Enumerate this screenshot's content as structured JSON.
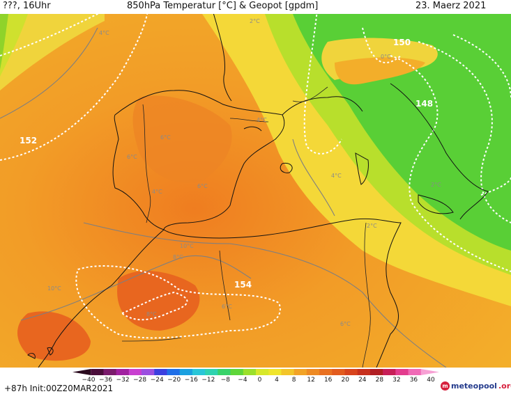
{
  "header": {
    "left": "???, 16Uhr",
    "title": "850hPa Temperatur [°C] & Geopot [gpdm]",
    "date": "23. Maerz 2021"
  },
  "map": {
    "geopotential_labels": [
      "152",
      "150",
      "148",
      "154"
    ],
    "temperature_labels": [
      "4°C",
      "2°C",
      "0°C",
      "4°C",
      "6°C",
      "6°C",
      "4°C",
      "6°C",
      "10°C",
      "8°C",
      "10°C",
      "4°C",
      "2°C",
      "6°C",
      "8°C",
      "6°C",
      "2°C"
    ]
  },
  "scale": {
    "ticks": [
      "−40",
      "−36",
      "−32",
      "−28",
      "−24",
      "−20",
      "−16",
      "−12",
      "−8",
      "−4",
      "0",
      "4",
      "8",
      "12",
      "16",
      "20",
      "24",
      "28",
      "32",
      "36",
      "40"
    ],
    "colors": [
      "#2a0a1e",
      "#4a0d3a",
      "#7a1b6c",
      "#a020a0",
      "#c83fd0",
      "#9b4fe0",
      "#3b3fdf",
      "#1f6fe8",
      "#1aa0e0",
      "#29c6d8",
      "#2fd3b0",
      "#38d36a",
      "#5ed63a",
      "#9be02b",
      "#d7e82a",
      "#f0e52c",
      "#f3c52a",
      "#f2a326",
      "#ee8a23",
      "#e97020",
      "#e25b1e",
      "#d8441d",
      "#c7301d",
      "#b11f24",
      "#c71f58",
      "#e33c8e",
      "#f06ab6",
      "#f7a0d4"
    ]
  },
  "footer": {
    "run": "+87h Init:00Z20MAR2021",
    "logo_main": "meteopool",
    "logo_tld": ".org",
    "logo_mark": "m"
  }
}
